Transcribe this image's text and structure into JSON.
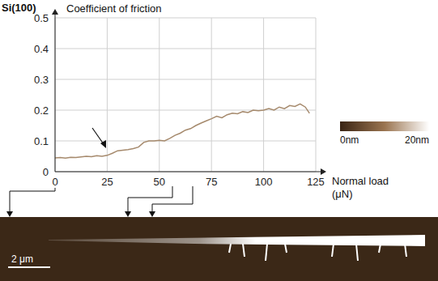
{
  "chart_data": {
    "type": "line",
    "title": "Si(100)",
    "y_label": "Coefficient of friction",
    "x_label": "Normal load (μN)",
    "color": "#a68a6d",
    "grid": true,
    "xlim": [
      0,
      125
    ],
    "xticks": [
      0,
      25,
      50,
      75,
      100,
      125
    ],
    "ylim": [
      0,
      0.5
    ],
    "yticks": [
      0,
      0.1,
      0.2,
      0.3,
      0.4,
      0.5
    ],
    "x": [
      0,
      2.5,
      5,
      7.5,
      10,
      12.5,
      15,
      17.5,
      20,
      22.5,
      25,
      27.5,
      30,
      32.5,
      35,
      37.5,
      40,
      42.5,
      45,
      47.5,
      50,
      52.5,
      55,
      57.5,
      60,
      62.5,
      65,
      67.5,
      70,
      72.5,
      75,
      77.5,
      80,
      82.5,
      85,
      87.5,
      90,
      92.5,
      95,
      97.5,
      100,
      102.5,
      105,
      107.5,
      110,
      112.5,
      115,
      117.5,
      120,
      122
    ],
    "values": [
      0.045,
      0.046,
      0.044,
      0.047,
      0.046,
      0.048,
      0.05,
      0.049,
      0.052,
      0.05,
      0.053,
      0.06,
      0.068,
      0.07,
      0.072,
      0.075,
      0.08,
      0.095,
      0.1,
      0.1,
      0.102,
      0.1,
      0.108,
      0.118,
      0.125,
      0.135,
      0.14,
      0.15,
      0.158,
      0.165,
      0.172,
      0.18,
      0.175,
      0.185,
      0.19,
      0.188,
      0.195,
      0.192,
      0.2,
      0.198,
      0.2,
      0.205,
      0.2,
      0.21,
      0.205,
      0.215,
      0.212,
      0.22,
      0.21,
      0.19
    ],
    "colorbar": {
      "range": [
        0,
        20
      ],
      "ticks": [
        {
          "value": 0,
          "label": "0nm"
        },
        {
          "value": 20,
          "label": "20nm"
        }
      ]
    },
    "scale_bar": "2 μm"
  }
}
